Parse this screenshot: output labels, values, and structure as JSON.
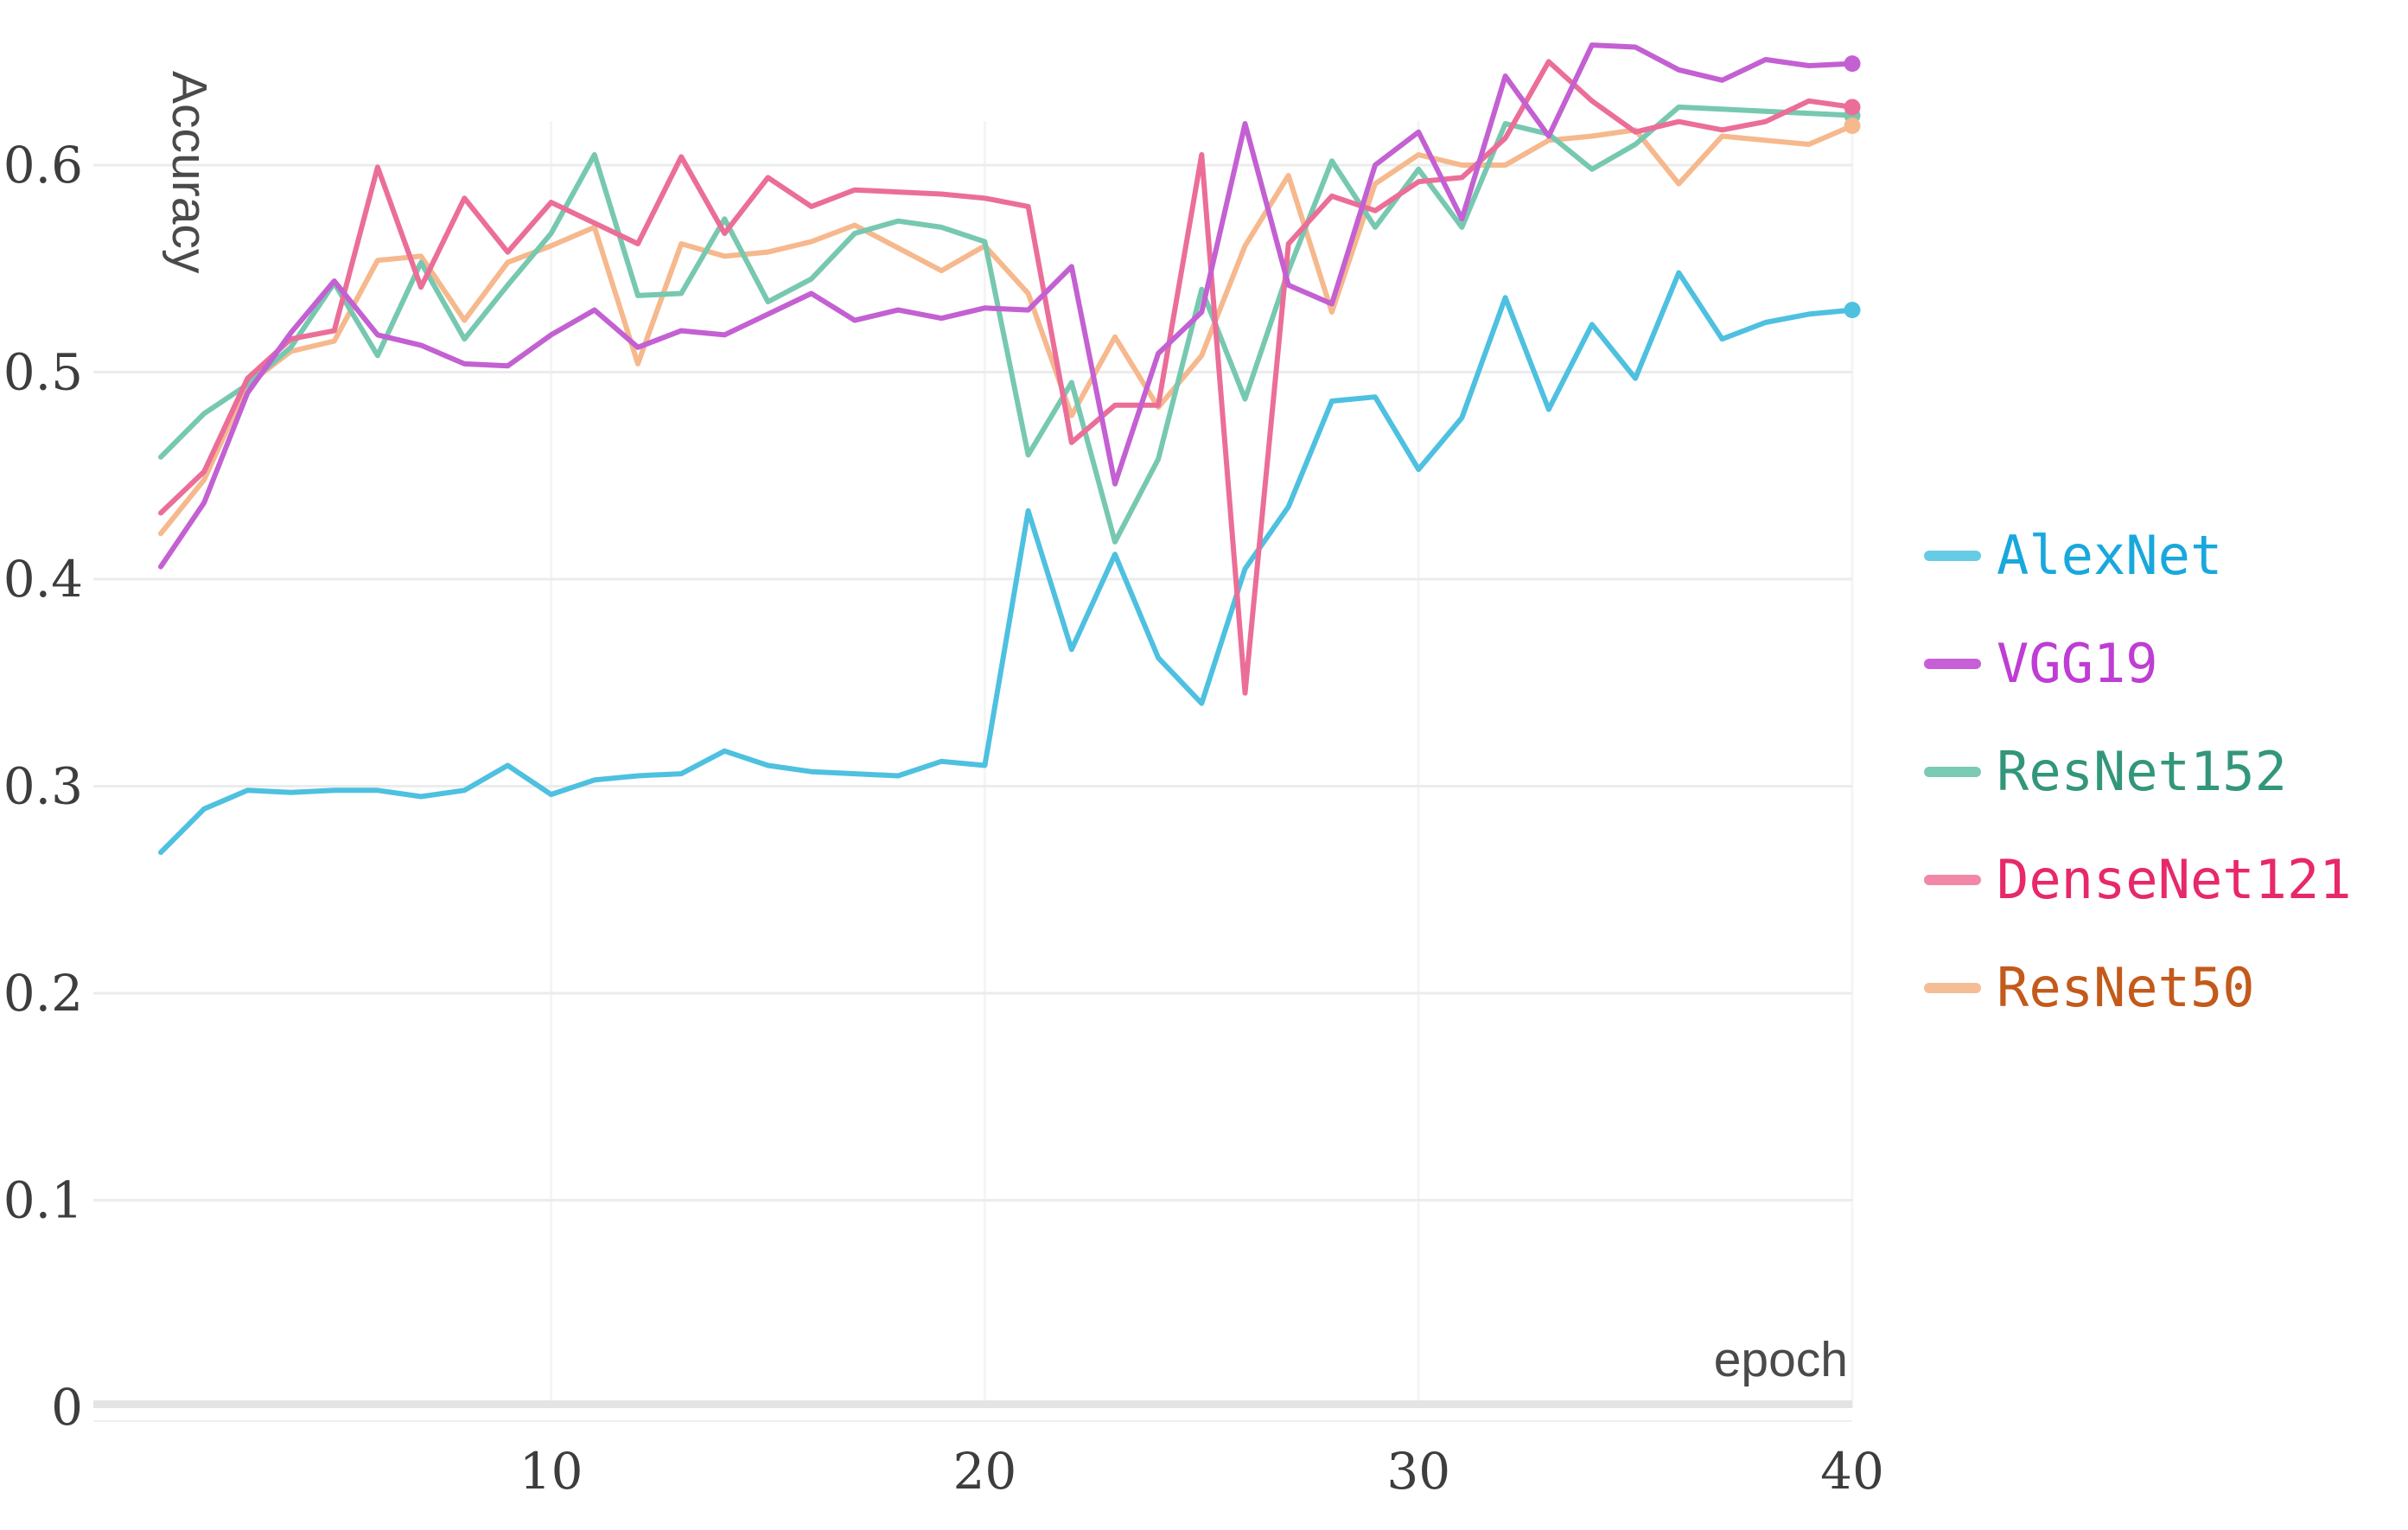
{
  "chart_data": {
    "type": "line",
    "title": "",
    "xlabel": "epoch",
    "ylabel": "Accuracy",
    "x": [
      1,
      2,
      3,
      4,
      5,
      6,
      7,
      8,
      9,
      10,
      11,
      12,
      13,
      14,
      15,
      16,
      17,
      18,
      19,
      20,
      21,
      22,
      23,
      24,
      25,
      26,
      27,
      28,
      29,
      30,
      31,
      32,
      33,
      34,
      35,
      36,
      37,
      38,
      39,
      40
    ],
    "xlim": [
      0.5,
      41
    ],
    "ylim": [
      0,
      0.685
    ],
    "xticks": [
      "10",
      "20",
      "30",
      "40"
    ],
    "yticks": [
      "0",
      "0.1",
      "0.2",
      "0.3",
      "0.4",
      "0.5",
      "0.6"
    ],
    "ytick_values": [
      0,
      0.1,
      0.2,
      0.3,
      0.4,
      0.5,
      0.6
    ],
    "xtick_values": [
      10,
      20,
      30,
      40
    ],
    "grid": "horizontal light gray major lines, very faint vertical lines at x ticks, thick light zero baseline",
    "legend_position": "right",
    "end_markers": "dot at last epoch of each series",
    "series": [
      {
        "name": "AlexNet",
        "line_color": "#4EC0E0",
        "swatch_color": "#66CBE5",
        "label_color": "#18A8DC",
        "values": [
          0.268,
          0.289,
          0.298,
          0.297,
          0.298,
          0.298,
          0.295,
          0.298,
          0.31,
          0.296,
          0.303,
          0.305,
          0.306,
          0.317,
          0.31,
          0.307,
          0.306,
          0.305,
          0.312,
          0.31,
          0.433,
          0.366,
          0.412,
          0.362,
          0.34,
          0.405,
          0.435,
          0.486,
          0.488,
          0.453,
          0.478,
          0.536,
          0.482,
          0.523,
          0.497,
          0.548,
          0.516,
          0.524,
          0.528,
          0.53
        ]
      },
      {
        "name": "VGG19",
        "line_color": "#C360D2",
        "swatch_color": "#C75FD6",
        "label_color": "#BE3DD3",
        "values": [
          0.406,
          0.437,
          0.49,
          0.519,
          0.544,
          0.518,
          0.513,
          0.504,
          0.503,
          0.518,
          0.53,
          0.512,
          0.52,
          0.518,
          0.528,
          0.538,
          0.525,
          0.53,
          0.526,
          0.531,
          0.53,
          0.551,
          0.446,
          0.509,
          0.529,
          0.62,
          0.542,
          0.533,
          0.6,
          0.616,
          0.574,
          0.643,
          0.614,
          0.658,
          0.657,
          0.646,
          0.641,
          0.651,
          0.648,
          0.649
        ]
      },
      {
        "name": "ResNet152",
        "line_color": "#77C8B0",
        "swatch_color": "#7BCAB3",
        "label_color": "#33967B",
        "values": [
          0.459,
          0.48,
          0.494,
          0.512,
          0.543,
          0.508,
          0.553,
          0.516,
          0.542,
          0.567,
          0.605,
          0.537,
          0.538,
          0.574,
          0.534,
          0.545,
          0.567,
          0.573,
          0.57,
          0.563,
          0.46,
          0.495,
          0.418,
          0.458,
          0.54,
          0.487,
          0.549,
          0.602,
          0.57,
          0.598,
          0.57,
          0.62,
          0.615,
          0.598,
          0.61,
          0.628,
          0.627,
          0.626,
          0.625,
          0.624
        ]
      },
      {
        "name": "DenseNet121",
        "line_color": "#EB6E98",
        "swatch_color": "#F287A7",
        "label_color": "#E7286B",
        "values": [
          0.432,
          0.452,
          0.497,
          0.516,
          0.52,
          0.599,
          0.541,
          0.584,
          0.558,
          0.582,
          0.572,
          0.562,
          0.604,
          0.567,
          0.594,
          0.58,
          0.588,
          0.587,
          0.586,
          0.584,
          0.58,
          0.466,
          0.484,
          0.484,
          0.605,
          0.345,
          0.562,
          0.585,
          0.578,
          0.592,
          0.594,
          0.613,
          0.65,
          0.631,
          0.616,
          0.621,
          0.617,
          0.621,
          0.631,
          0.628
        ]
      },
      {
        "name": "ResNet50",
        "line_color": "#F6B88D",
        "swatch_color": "#F5BD96",
        "label_color": "#C35A1B",
        "values": [
          0.422,
          0.448,
          0.494,
          0.51,
          0.515,
          0.554,
          0.556,
          0.525,
          0.553,
          0.561,
          0.57,
          0.504,
          0.562,
          0.556,
          0.558,
          0.563,
          0.571,
          0.56,
          0.549,
          0.561,
          0.538,
          0.479,
          0.517,
          0.483,
          0.508,
          0.561,
          0.595,
          0.529,
          0.591,
          0.605,
          0.6,
          0.6,
          0.612,
          0.614,
          0.617,
          0.591,
          0.614,
          0.612,
          0.61,
          0.619
        ]
      }
    ]
  },
  "style": {
    "background_color": "#ffffff",
    "gridline_color": "#ececec",
    "vertical_gridline_color": "#f5f5f5",
    "zero_line_color": "#e4e4e4",
    "zero_subline_color": "#f0f0f0",
    "tick_label_color": "#3d3d3d",
    "axis_title_color": "#4a4a4a"
  }
}
